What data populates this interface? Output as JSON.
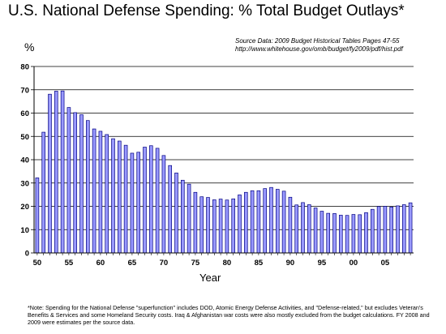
{
  "chart_data": {
    "type": "bar",
    "title": "U.S. National Defense Spending: % Total Budget Outlays*",
    "source_line1": "Source Data:  2009 Budget Historical Tables Pages 47-55",
    "source_line2": "http://www.whitehouse.gov/omb/budget/fy2009/pdf/hist.pdf",
    "ylabel": "%",
    "xlabel": "Year",
    "ylim": [
      0,
      80
    ],
    "yticks": [
      0,
      10,
      20,
      30,
      40,
      50,
      60,
      70,
      80
    ],
    "x_tick_labels": [
      "50",
      "55",
      "60",
      "65",
      "70",
      "75",
      "80",
      "85",
      "90",
      "95",
      "00",
      "05"
    ],
    "years": [
      1950,
      1951,
      1952,
      1953,
      1954,
      1955,
      1956,
      1957,
      1958,
      1959,
      1960,
      1961,
      1962,
      1963,
      1964,
      1965,
      1966,
      1967,
      1968,
      1969,
      1970,
      1971,
      1972,
      1973,
      1974,
      1975,
      1976,
      1977,
      1978,
      1979,
      1980,
      1981,
      1982,
      1983,
      1984,
      1985,
      1986,
      1987,
      1988,
      1989,
      1990,
      1991,
      1992,
      1993,
      1994,
      1995,
      1996,
      1997,
      1998,
      1999,
      2000,
      2001,
      2002,
      2003,
      2004,
      2005,
      2006,
      2007,
      2008,
      2009
    ],
    "values": [
      32.2,
      51.8,
      68.1,
      69.4,
      69.5,
      62.4,
      60.2,
      59.3,
      56.8,
      53.2,
      52.2,
      50.8,
      49.0,
      48.0,
      46.2,
      42.8,
      43.2,
      45.4,
      46.0,
      44.9,
      41.8,
      37.5,
      34.3,
      31.2,
      29.5,
      26.0,
      24.1,
      23.8,
      22.8,
      23.1,
      22.7,
      23.2,
      24.9,
      26.0,
      26.7,
      26.7,
      27.6,
      28.1,
      27.3,
      26.5,
      23.9,
      20.6,
      21.6,
      20.7,
      19.3,
      17.9,
      17.0,
      16.9,
      16.2,
      16.1,
      16.5,
      16.4,
      17.3,
      18.7,
      19.9,
      20.0,
      19.7,
      20.2,
      20.7,
      21.5
    ],
    "bar_color": "#9999ff",
    "grid": true,
    "legend": "none"
  },
  "footnote": "*Note: Spending for the National Defense \"superfunction\" includes DOD, Atomic Energy Defense Activities, and \"Defense-related,\" but excludes Veteran's Benefits & Services and some Homeland Security costs.  Iraq & Afghanistan war costs were also mostly excluded from the budget calculations.  FY 2008 and 2009 were estimates per the source data."
}
